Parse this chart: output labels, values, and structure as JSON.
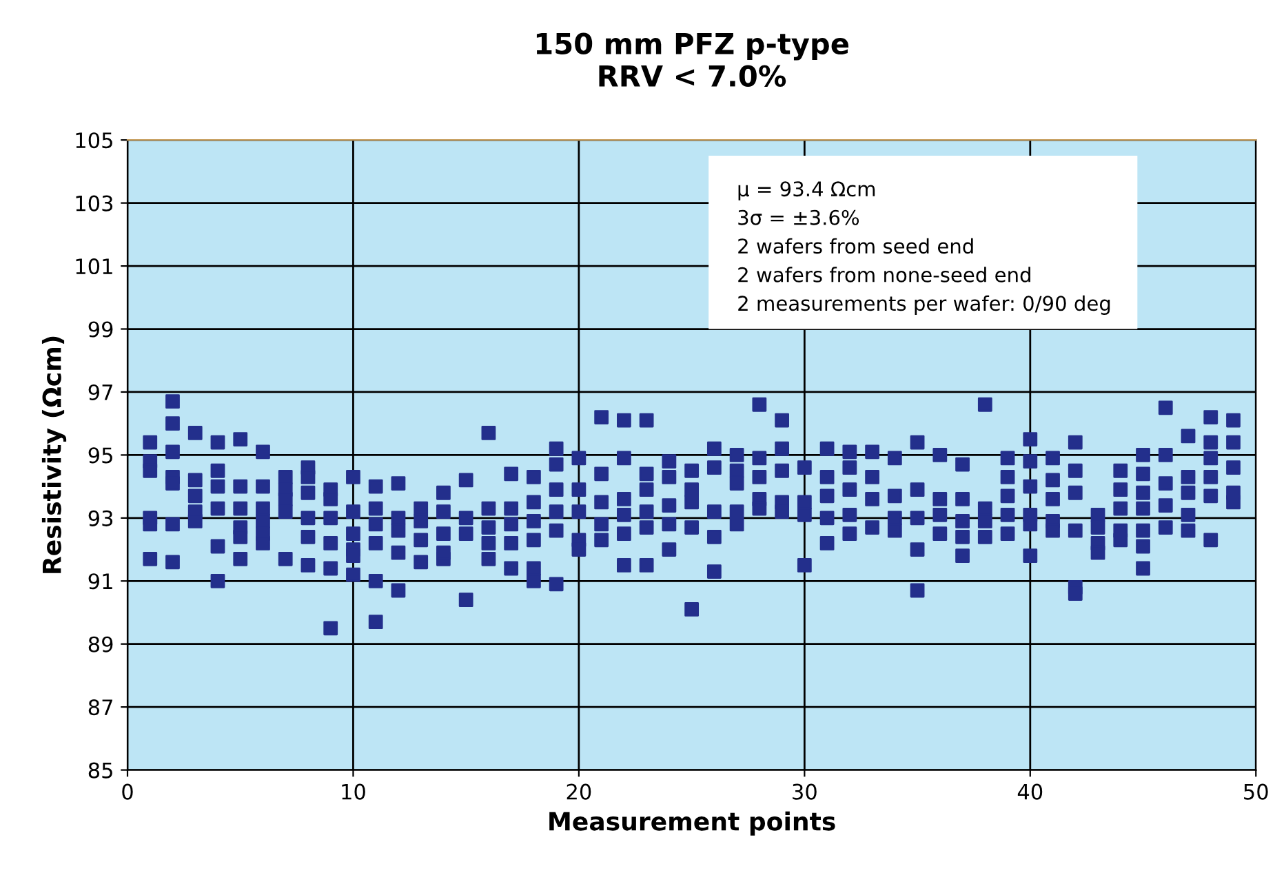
{
  "chart_data": {
    "type": "scatter",
    "title": "150 mm PFZ p-type\nRRV < 7.0%",
    "xlabel": "Measurement points",
    "ylabel": "Resistivity (Ωcm)",
    "annotations": [
      "μ = 93.4 Ωcm",
      "3σ = ±3.6%",
      "2 wafers from seed end",
      "2 wafers from none-seed end",
      "2 measurements per wafer: 0/90 deg"
    ],
    "xlim": [
      0,
      50
    ],
    "xticks": [
      0,
      10,
      20,
      30,
      40,
      50
    ],
    "ylim": [
      85,
      105
    ],
    "yticks": [
      85,
      87,
      89,
      91,
      93,
      95,
      97,
      99,
      101,
      103,
      105
    ],
    "grid": true,
    "marker": "square",
    "series": [
      {
        "color": "#232f8c",
        "x": [
          1,
          1,
          1,
          1,
          1,
          1,
          2,
          2,
          2,
          2,
          2,
          2,
          2,
          3,
          3,
          3,
          3,
          3,
          4,
          4,
          4,
          4,
          4,
          4,
          5,
          5,
          5,
          5,
          5,
          5,
          6,
          6,
          6,
          6,
          6,
          6,
          7,
          7,
          7,
          7,
          7,
          8,
          8,
          8,
          8,
          8,
          8,
          9,
          9,
          9,
          9,
          9,
          9,
          10,
          10,
          10,
          10,
          10,
          10,
          11,
          11,
          11,
          11,
          11,
          11,
          12,
          12,
          12,
          12,
          12,
          13,
          13,
          13,
          13,
          14,
          14,
          14,
          14,
          14,
          15,
          15,
          15,
          15,
          16,
          16,
          16,
          16,
          16,
          17,
          17,
          17,
          17,
          17,
          18,
          18,
          18,
          18,
          18,
          18,
          19,
          19,
          19,
          19,
          19,
          19,
          20,
          20,
          20,
          20,
          20,
          21,
          21,
          21,
          21,
          21,
          22,
          22,
          22,
          22,
          22,
          22,
          23,
          23,
          23,
          23,
          23,
          23,
          24,
          24,
          24,
          24,
          24,
          25,
          25,
          25,
          25,
          25,
          26,
          26,
          26,
          26,
          26,
          27,
          27,
          27,
          27,
          27,
          28,
          28,
          28,
          28,
          28,
          29,
          29,
          29,
          29,
          29,
          30,
          30,
          30,
          30,
          31,
          31,
          31,
          31,
          31,
          32,
          32,
          32,
          32,
          32,
          33,
          33,
          33,
          33,
          34,
          34,
          34,
          34,
          35,
          35,
          35,
          35,
          35,
          36,
          36,
          36,
          36,
          37,
          37,
          37,
          37,
          37,
          38,
          38,
          38,
          38,
          39,
          39,
          39,
          39,
          39,
          40,
          40,
          40,
          40,
          40,
          40,
          41,
          41,
          41,
          41,
          41,
          42,
          42,
          42,
          42,
          42,
          42,
          43,
          43,
          43,
          43,
          44,
          44,
          44,
          44,
          44,
          45,
          45,
          45,
          45,
          45,
          45,
          45,
          46,
          46,
          46,
          46,
          46,
          47,
          47,
          47,
          47,
          47,
          48,
          48,
          48,
          48,
          48,
          48,
          49,
          49,
          49,
          49,
          49
        ],
        "values": [
          95.4,
          94.8,
          94.5,
          93.0,
          92.8,
          91.7,
          96.7,
          96.0,
          95.1,
          94.3,
          94.1,
          92.8,
          91.6,
          95.7,
          94.2,
          93.7,
          93.2,
          92.9,
          95.4,
          94.5,
          94.0,
          93.3,
          92.1,
          91.0,
          95.5,
          94.0,
          93.3,
          92.7,
          92.4,
          91.7,
          95.1,
          94.0,
          93.3,
          92.9,
          92.5,
          92.2,
          94.3,
          93.9,
          93.6,
          93.2,
          91.7,
          94.6,
          94.3,
          93.8,
          93.0,
          92.4,
          91.5,
          93.9,
          93.6,
          93.0,
          92.2,
          91.4,
          89.5,
          94.3,
          93.2,
          92.5,
          92.0,
          91.8,
          91.2,
          94.0,
          93.3,
          92.8,
          92.2,
          91.0,
          89.7,
          94.1,
          93.0,
          92.6,
          91.9,
          90.7,
          93.3,
          92.9,
          92.3,
          91.6,
          93.8,
          93.2,
          92.5,
          91.7,
          91.9,
          94.2,
          93.0,
          92.5,
          90.4,
          95.7,
          93.3,
          92.7,
          92.2,
          91.7,
          94.4,
          93.3,
          92.8,
          92.2,
          91.4,
          94.3,
          93.5,
          92.9,
          92.3,
          91.4,
          91.0,
          95.2,
          94.7,
          93.9,
          93.2,
          92.6,
          90.9,
          94.9,
          93.9,
          93.2,
          92.3,
          92.0,
          96.2,
          94.4,
          93.5,
          92.8,
          92.3,
          96.1,
          94.9,
          93.6,
          93.1,
          92.5,
          91.5,
          96.1,
          94.4,
          93.9,
          93.2,
          92.7,
          91.5,
          94.8,
          94.3,
          93.4,
          92.8,
          92.0,
          94.5,
          93.9,
          93.5,
          92.7,
          90.1,
          95.2,
          94.6,
          93.2,
          92.4,
          91.3,
          95.0,
          94.5,
          94.1,
          93.2,
          92.8,
          96.6,
          94.9,
          94.3,
          93.6,
          93.3,
          96.1,
          95.2,
          94.5,
          93.5,
          93.2,
          94.6,
          93.5,
          93.1,
          91.5,
          95.2,
          94.3,
          93.7,
          93.0,
          92.2,
          95.1,
          94.6,
          93.9,
          93.1,
          92.5,
          95.1,
          94.3,
          93.6,
          92.7,
          94.9,
          93.7,
          93.0,
          92.6,
          95.4,
          93.9,
          93.0,
          92.0,
          90.7,
          95.0,
          93.6,
          93.1,
          92.5,
          94.7,
          93.6,
          92.9,
          92.4,
          91.8,
          96.6,
          93.3,
          92.9,
          92.4,
          94.9,
          94.3,
          93.7,
          93.1,
          92.5,
          95.5,
          94.8,
          94.0,
          93.1,
          92.8,
          91.8,
          94.9,
          94.2,
          93.6,
          92.9,
          92.6,
          95.4,
          94.5,
          93.8,
          92.6,
          90.8,
          90.6,
          93.1,
          92.7,
          92.2,
          91.9,
          94.5,
          93.9,
          93.3,
          92.6,
          92.3,
          95.0,
          94.4,
          93.8,
          93.3,
          92.6,
          92.1,
          91.4,
          96.5,
          95.0,
          94.1,
          93.4,
          92.7,
          95.6,
          94.3,
          93.8,
          93.1,
          92.6,
          96.2,
          95.4,
          94.9,
          94.3,
          93.7,
          92.3,
          96.1,
          95.4,
          94.6,
          93.8,
          93.5
        ]
      }
    ]
  }
}
